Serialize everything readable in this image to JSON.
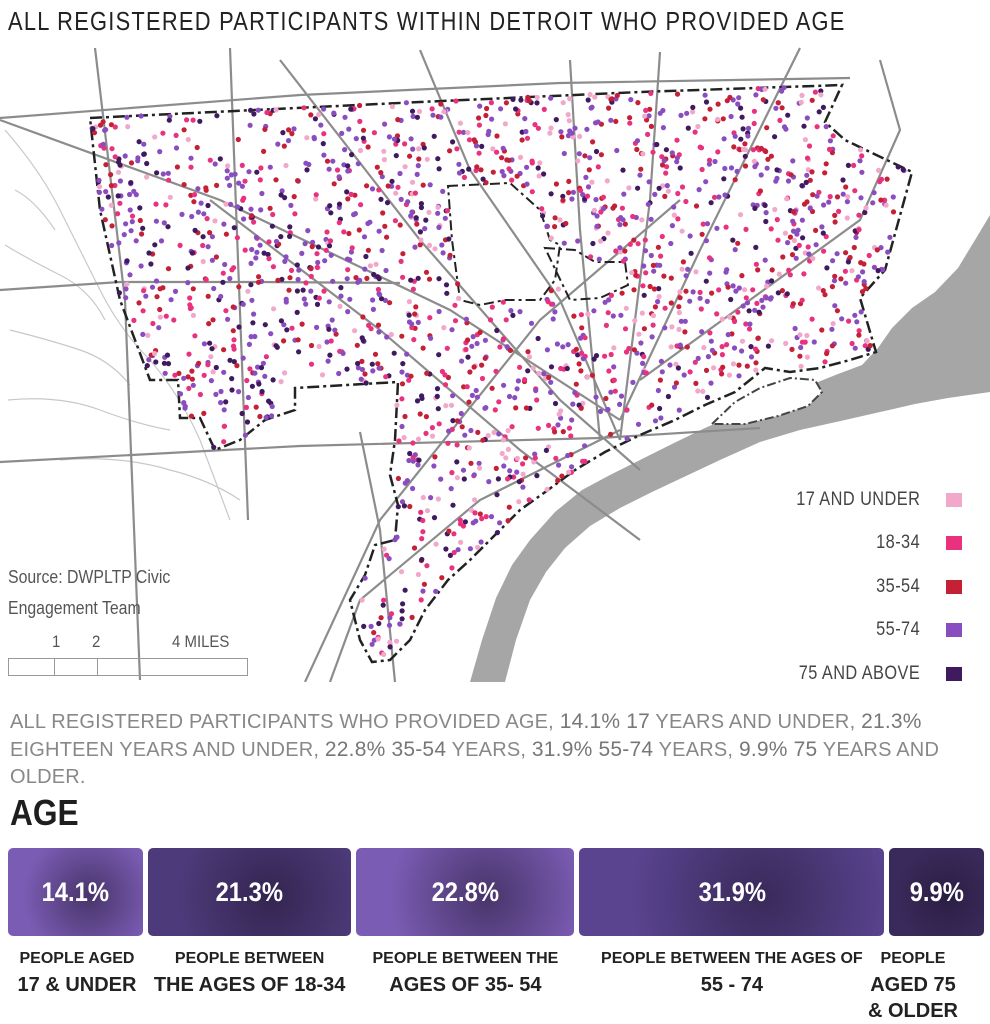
{
  "title": "ALL REGISTERED PARTICIPANTS WITHIN DETROIT WHO PROVIDED AGE",
  "legend": [
    {
      "label": "17 AND UNDER",
      "color": "#f2a8cb"
    },
    {
      "label": "18-34",
      "color": "#e8327e"
    },
    {
      "label": "35-54",
      "color": "#c42036"
    },
    {
      "label": "55-74",
      "color": "#8a4dbf"
    },
    {
      "label": "75 AND ABOVE",
      "color": "#3f1a5e"
    }
  ],
  "source": {
    "line1": "Source: DWPLTP Civic",
    "line2": "Engagement Team"
  },
  "scale": {
    "ticks": [
      "1",
      "2",
      "4 MILES"
    ]
  },
  "summary": {
    "t1": "ALL REGISTERED PARTICIPANTS WHO PROVIDED AGE, ",
    "p1": "14.1% 17",
    "t2": " YEARS AND UNDER, ",
    "p2": "21.3%",
    "t3": " EIGHTEEN YEARS AND UNDER, ",
    "p3": "22.8% 35-54",
    "t4": " YEARS, ",
    "p4": "31.9% 55-74",
    "t5": " YEARS, ",
    "p5": "9.9% 75",
    "t6": " YEARS AND OLDER."
  },
  "age": {
    "heading": "AGE",
    "bars": [
      {
        "value": "14.1%",
        "share": 14.1,
        "color": "#7b5cb4",
        "cap_a": "PEOPLE AGED",
        "cap_b": "17 & UNDER"
      },
      {
        "value": "21.3%",
        "share": 21.3,
        "color": "#4d3a7a",
        "cap_a": "PEOPLE BETWEEN",
        "cap_b": "THE AGES OF 18-34"
      },
      {
        "value": "22.8%",
        "share": 22.8,
        "color": "#7b5cb4",
        "cap_a": "PEOPLE BETWEEN THE",
        "cap_b": "AGES OF 35- 54"
      },
      {
        "value": "31.9%",
        "share": 31.9,
        "color": "#5a4490",
        "cap_a": "PEOPLE BETWEEN THE AGES OF",
        "cap_b": "55 - 74"
      },
      {
        "value": "9.9%",
        "share": 9.9,
        "color": "#3a2a5c",
        "cap_a": "PEOPLE",
        "cap_b": "AGED 75",
        "cap_c": "& OLDER"
      }
    ]
  }
}
